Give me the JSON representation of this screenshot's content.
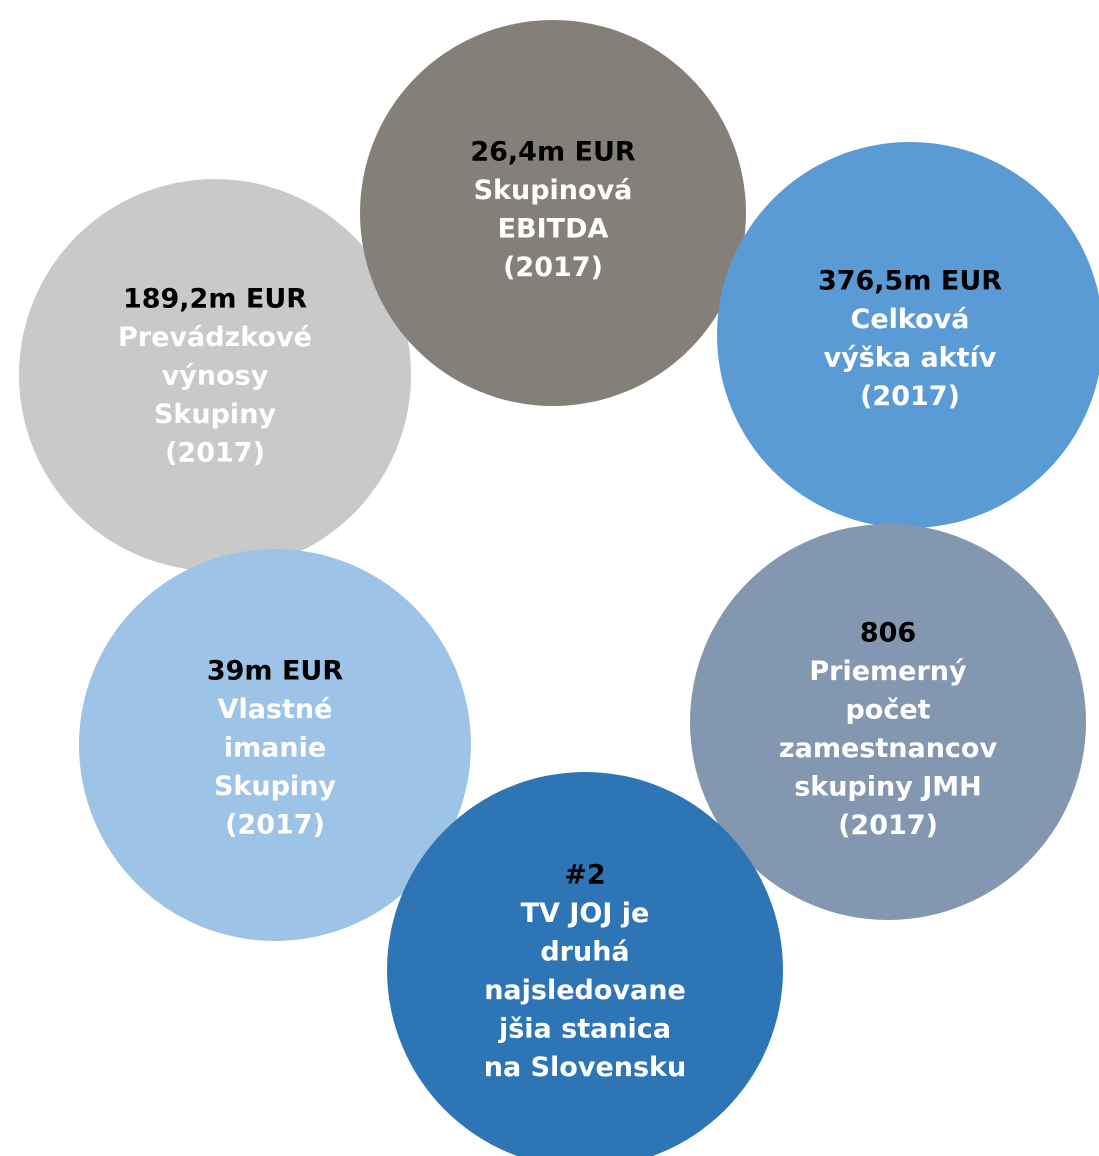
{
  "circles": [
    {
      "color": "#c9c9c9",
      "headline": "189,2m EUR",
      "lines": [
        "Prevádzkové",
        "výnosy",
        "Skupiny",
        "(2017)"
      ]
    },
    {
      "color": "#857f7a",
      "headline": "26,4m EUR",
      "lines": [
        "Skupinová",
        "EBITDA",
        "(2017)"
      ]
    },
    {
      "color": "#5b9bd5",
      "headline": "376,5m EUR",
      "lines": [
        "Celková",
        "výška aktív",
        "(2017)"
      ]
    },
    {
      "color": "#8497b0",
      "headline": "806",
      "lines": [
        "Priemerný",
        "počet",
        "zamestnancov",
        "skupiny JMH",
        "(2017)"
      ]
    },
    {
      "color": "#9dc3e6",
      "headline": "39m EUR",
      "lines": [
        "Vlastné",
        "imanie",
        "Skupiny",
        "(2017)"
      ]
    },
    {
      "color": "#2e75b6",
      "headline": "#2",
      "lines": [
        "TV JOJ je",
        "druhá",
        "najsledovane",
        "jšia stanica",
        "na Slovensku"
      ]
    }
  ]
}
